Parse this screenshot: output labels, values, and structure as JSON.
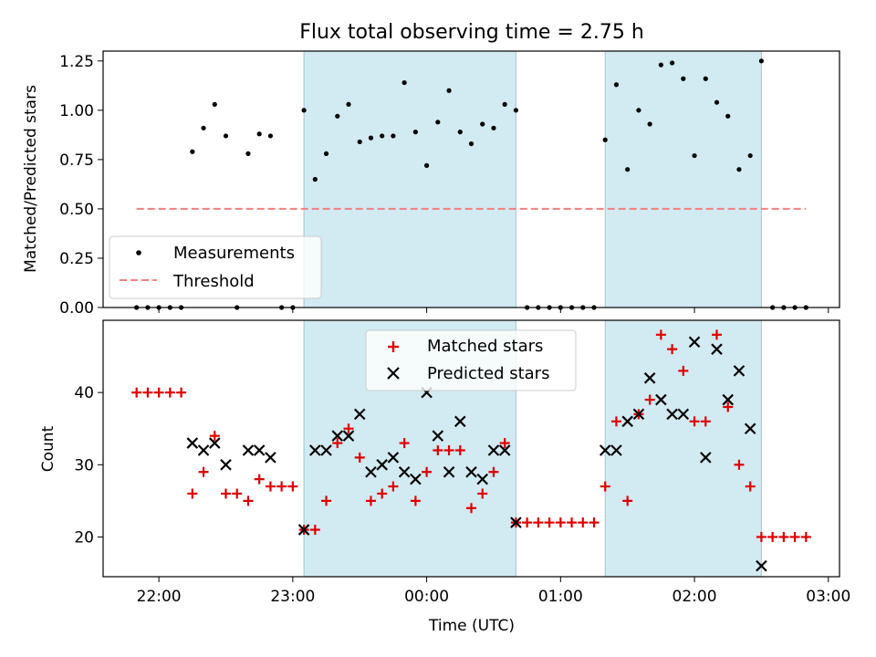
{
  "title": "Flux total observing time = 2.75 h",
  "xlabel": "Time (UTC)",
  "colors": {
    "measurement": "#000000",
    "threshold": "#f08080",
    "matched": "#e00000",
    "predicted": "#000000",
    "shade": "#add8e6"
  },
  "chart_data": [
    {
      "type": "scatter",
      "ylabel": "Matched/Predicted stars",
      "ylim": [
        0,
        1.3
      ],
      "yticks": [
        "0.00",
        "0.25",
        "0.50",
        "0.75",
        "1.00",
        "1.25"
      ],
      "x_range": [
        "21:35",
        "03:05"
      ],
      "shaded_intervals": [
        [
          "23:05",
          "00:40"
        ],
        [
          "01:20",
          "02:30"
        ]
      ],
      "threshold": {
        "value": 0.5,
        "x": [
          "21:50",
          "02:50"
        ]
      },
      "legend": {
        "position": "lower-left",
        "entries": [
          "Measurements",
          "Threshold"
        ]
      },
      "series": [
        {
          "name": "Measurements",
          "points": [
            [
              "21:50",
              0
            ],
            [
              "21:55",
              0
            ],
            [
              "22:00",
              0
            ],
            [
              "22:05",
              0
            ],
            [
              "22:10",
              0
            ],
            [
              "22:15",
              0.79
            ],
            [
              "22:20",
              0.91
            ],
            [
              "22:25",
              1.03
            ],
            [
              "22:30",
              0.87
            ],
            [
              "22:35",
              0
            ],
            [
              "22:40",
              0.78
            ],
            [
              "22:45",
              0.88
            ],
            [
              "22:50",
              0.87
            ],
            [
              "22:55",
              0
            ],
            [
              "23:00",
              0
            ],
            [
              "23:05",
              1.0
            ],
            [
              "23:10",
              0.65
            ],
            [
              "23:15",
              0.78
            ],
            [
              "23:20",
              0.97
            ],
            [
              "23:25",
              1.03
            ],
            [
              "23:30",
              0.84
            ],
            [
              "23:35",
              0.86
            ],
            [
              "23:40",
              0.87
            ],
            [
              "23:45",
              0.87
            ],
            [
              "23:50",
              1.14
            ],
            [
              "23:55",
              0.89
            ],
            [
              "00:00",
              0.72
            ],
            [
              "00:05",
              0.94
            ],
            [
              "00:10",
              1.1
            ],
            [
              "00:15",
              0.89
            ],
            [
              "00:20",
              0.83
            ],
            [
              "00:25",
              0.93
            ],
            [
              "00:30",
              0.91
            ],
            [
              "00:35",
              1.03
            ],
            [
              "00:40",
              1.0
            ],
            [
              "00:45",
              0
            ],
            [
              "00:50",
              0
            ],
            [
              "00:55",
              0
            ],
            [
              "01:00",
              0
            ],
            [
              "01:05",
              0
            ],
            [
              "01:10",
              0
            ],
            [
              "01:15",
              0
            ],
            [
              "01:20",
              0.85
            ],
            [
              "01:25",
              1.13
            ],
            [
              "01:30",
              0.7
            ],
            [
              "01:35",
              1.0
            ],
            [
              "01:40",
              0.93
            ],
            [
              "01:45",
              1.23
            ],
            [
              "01:50",
              1.24
            ],
            [
              "01:55",
              1.16
            ],
            [
              "02:00",
              0.77
            ],
            [
              "02:05",
              1.16
            ],
            [
              "02:10",
              1.04
            ],
            [
              "02:15",
              0.97
            ],
            [
              "02:20",
              0.7
            ],
            [
              "02:25",
              0.77
            ],
            [
              "02:30",
              1.25
            ],
            [
              "02:35",
              0
            ],
            [
              "02:40",
              0
            ],
            [
              "02:45",
              0
            ],
            [
              "02:50",
              0
            ]
          ]
        }
      ]
    },
    {
      "type": "scatter",
      "ylabel": "Count",
      "ylim": [
        14.5,
        50
      ],
      "yticks": [
        "20",
        "30",
        "40"
      ],
      "x_range": [
        "21:35",
        "03:05"
      ],
      "xticks": [
        "22:00",
        "23:00",
        "00:00",
        "01:00",
        "02:00",
        "03:00"
      ],
      "shaded_intervals": [
        [
          "23:05",
          "00:40"
        ],
        [
          "01:20",
          "02:30"
        ]
      ],
      "legend": {
        "position": "upper-center",
        "entries": [
          "Matched stars",
          "Predicted stars"
        ]
      },
      "series": [
        {
          "name": "Matched stars",
          "marker": "plus",
          "points": [
            [
              "21:50",
              40
            ],
            [
              "21:55",
              40
            ],
            [
              "22:00",
              40
            ],
            [
              "22:05",
              40
            ],
            [
              "22:10",
              40
            ],
            [
              "22:15",
              26
            ],
            [
              "22:20",
              29
            ],
            [
              "22:25",
              34
            ],
            [
              "22:30",
              26
            ],
            [
              "22:35",
              26
            ],
            [
              "22:40",
              25
            ],
            [
              "22:45",
              28
            ],
            [
              "22:50",
              27
            ],
            [
              "22:55",
              27
            ],
            [
              "23:00",
              27
            ],
            [
              "23:05",
              21
            ],
            [
              "23:10",
              21
            ],
            [
              "23:15",
              25
            ],
            [
              "23:20",
              33
            ],
            [
              "23:25",
              35
            ],
            [
              "23:30",
              31
            ],
            [
              "23:35",
              25
            ],
            [
              "23:40",
              26
            ],
            [
              "23:45",
              27
            ],
            [
              "23:50",
              33
            ],
            [
              "23:55",
              25
            ],
            [
              "00:00",
              29
            ],
            [
              "00:05",
              32
            ],
            [
              "00:10",
              32
            ],
            [
              "00:15",
              32
            ],
            [
              "00:20",
              24
            ],
            [
              "00:25",
              26
            ],
            [
              "00:30",
              29
            ],
            [
              "00:35",
              33
            ],
            [
              "00:40",
              22
            ],
            [
              "00:45",
              22
            ],
            [
              "00:50",
              22
            ],
            [
              "00:55",
              22
            ],
            [
              "01:00",
              22
            ],
            [
              "01:05",
              22
            ],
            [
              "01:10",
              22
            ],
            [
              "01:15",
              22
            ],
            [
              "01:20",
              27
            ],
            [
              "01:25",
              36
            ],
            [
              "01:30",
              25
            ],
            [
              "01:35",
              37
            ],
            [
              "01:40",
              39
            ],
            [
              "01:45",
              48
            ],
            [
              "01:50",
              46
            ],
            [
              "01:55",
              43
            ],
            [
              "02:00",
              36
            ],
            [
              "02:05",
              36
            ],
            [
              "02:10",
              48
            ],
            [
              "02:15",
              38
            ],
            [
              "02:20",
              30
            ],
            [
              "02:25",
              27
            ],
            [
              "02:30",
              20
            ],
            [
              "02:35",
              20
            ],
            [
              "02:40",
              20
            ],
            [
              "02:45",
              20
            ],
            [
              "02:50",
              20
            ]
          ]
        },
        {
          "name": "Predicted stars",
          "marker": "x",
          "points": [
            [
              "22:15",
              33
            ],
            [
              "22:20",
              32
            ],
            [
              "22:25",
              33
            ],
            [
              "22:30",
              30
            ],
            [
              "22:40",
              32
            ],
            [
              "22:45",
              32
            ],
            [
              "22:50",
              31
            ],
            [
              "23:05",
              21
            ],
            [
              "23:10",
              32
            ],
            [
              "23:15",
              32
            ],
            [
              "23:20",
              34
            ],
            [
              "23:25",
              34
            ],
            [
              "23:30",
              37
            ],
            [
              "23:35",
              29
            ],
            [
              "23:40",
              30
            ],
            [
              "23:45",
              31
            ],
            [
              "23:50",
              29
            ],
            [
              "23:55",
              28
            ],
            [
              "00:00",
              40
            ],
            [
              "00:05",
              34
            ],
            [
              "00:10",
              29
            ],
            [
              "00:15",
              36
            ],
            [
              "00:20",
              29
            ],
            [
              "00:25",
              28
            ],
            [
              "00:30",
              32
            ],
            [
              "00:35",
              32
            ],
            [
              "00:40",
              22
            ],
            [
              "01:20",
              32
            ],
            [
              "01:25",
              32
            ],
            [
              "01:30",
              36
            ],
            [
              "01:35",
              37
            ],
            [
              "01:40",
              42
            ],
            [
              "01:45",
              39
            ],
            [
              "01:50",
              37
            ],
            [
              "01:55",
              37
            ],
            [
              "02:00",
              47
            ],
            [
              "02:05",
              31
            ],
            [
              "02:10",
              46
            ],
            [
              "02:15",
              39
            ],
            [
              "02:20",
              43
            ],
            [
              "02:25",
              35
            ],
            [
              "02:30",
              16
            ]
          ]
        }
      ]
    }
  ]
}
